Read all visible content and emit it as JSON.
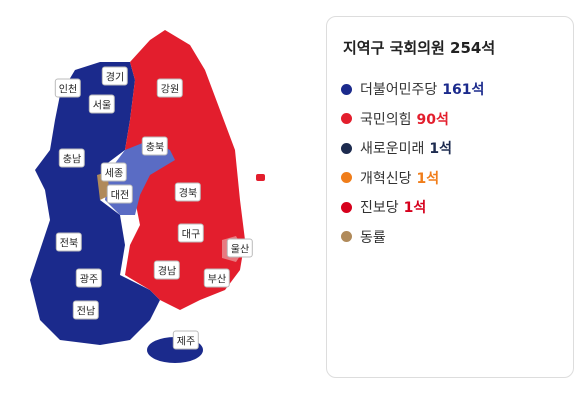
{
  "map": {
    "regions": [
      "경기",
      "인천",
      "서울",
      "강원",
      "충북",
      "충남",
      "세종",
      "대전",
      "경북",
      "대구",
      "전북",
      "울산",
      "경남",
      "부산",
      "광주",
      "전남",
      "제주"
    ]
  },
  "legend": {
    "title": "지역구 국회의원 254석",
    "items": [
      {
        "name": "더불어민주당",
        "seats": "161석",
        "color": "#1b2a8c"
      },
      {
        "name": "국민의힘",
        "seats": "90석",
        "color": "#e31e2d"
      },
      {
        "name": "새로운미래",
        "seats": "1석",
        "color": "#1d2b4f"
      },
      {
        "name": "개혁신당",
        "seats": "1석",
        "color": "#f07d1a"
      },
      {
        "name": "진보당",
        "seats": "1석",
        "color": "#d6001c"
      },
      {
        "name": "동률",
        "color": "#b08a5a"
      }
    ]
  }
}
